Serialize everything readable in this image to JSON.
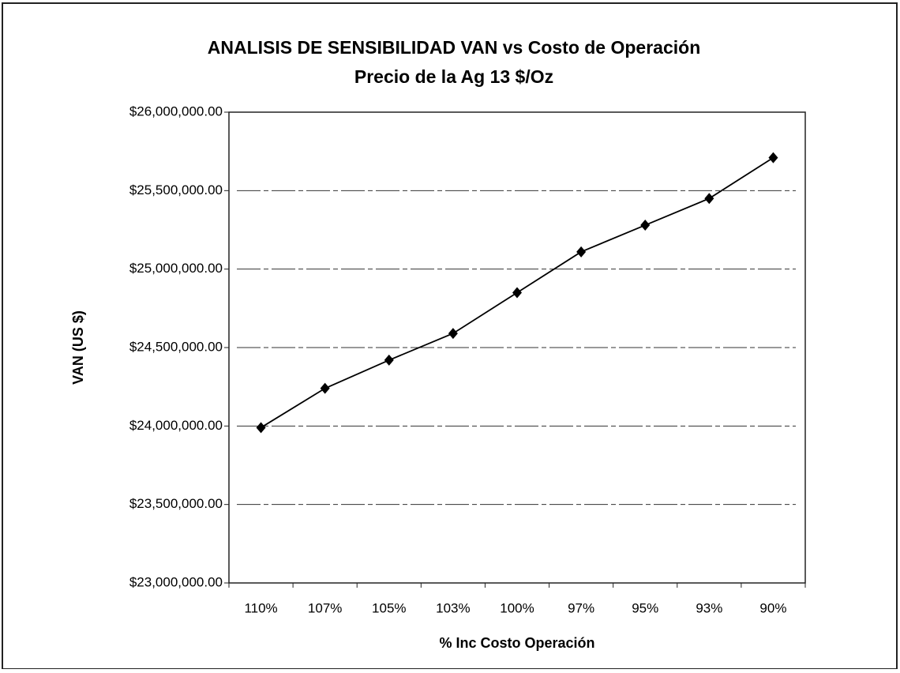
{
  "chart_data": {
    "type": "line",
    "title": "ANALISIS DE SENSIBILIDAD VAN  vs Costo de Operación",
    "subtitle": "Precio de la Ag  13 $/Oz",
    "x_label": "% Inc Costo Operación",
    "y_label": "VAN (US $)",
    "categories": [
      "110%",
      "107%",
      "105%",
      "103%",
      "100%",
      "97%",
      "95%",
      "93%",
      "90%"
    ],
    "series": [
      {
        "name": "VAN",
        "color": "#000000",
        "values": [
          23990000,
          24240000,
          24420000,
          24590000,
          24850000,
          25110000,
          25280000,
          25450000,
          25710000
        ]
      }
    ],
    "ylim": [
      23000000,
      26000000
    ],
    "yticks": [
      {
        "value": 23000000,
        "label": "$23,000,000.00"
      },
      {
        "value": 23500000,
        "label": "$23,500,000.00"
      },
      {
        "value": 24000000,
        "label": "$24,000,000.00"
      },
      {
        "value": 24500000,
        "label": "$24,500,000.00"
      },
      {
        "value": 25000000,
        "label": "$25,000,000.00"
      },
      {
        "value": 25500000,
        "label": "$25,500,000.00"
      },
      {
        "value": 26000000,
        "label": "$26,000,000.00"
      }
    ],
    "grid": true
  }
}
